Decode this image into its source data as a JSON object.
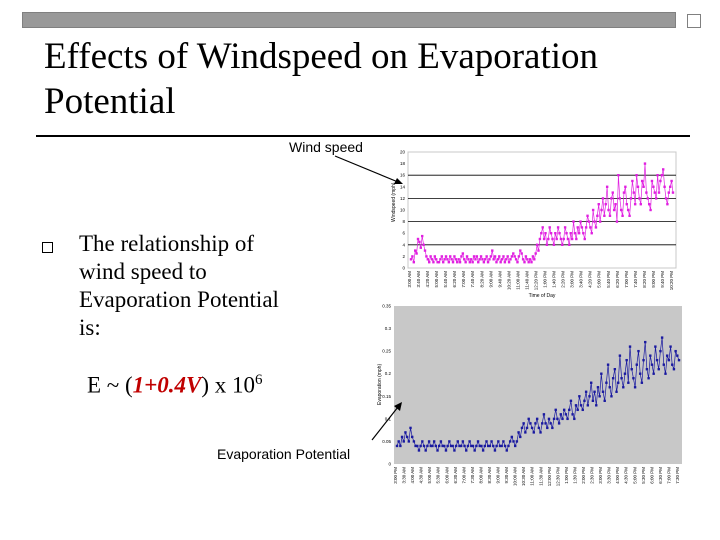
{
  "slide": {
    "title_line1": "Effects of Windspeed on Evaporation",
    "title_line2": "Potential",
    "body_lines": [
      "The relationship of",
      "wind speed to",
      "Evaporation Potential",
      "is:"
    ],
    "formula": {
      "prefix": "E ~ (",
      "highlight": "1+0.4V",
      "suffix": ") x 10",
      "exponent": "6"
    },
    "label_wind": "Wind speed",
    "label_evap": "Evaporation Potential"
  },
  "colors": {
    "wind_series": "#e020e0",
    "evap_series": "#1a1aa0",
    "plot_bg": "#c8c8c8",
    "accent": "#c00000"
  },
  "chart_data": [
    {
      "type": "scatter",
      "title": "",
      "xlabel": "Time of Day",
      "ylabel": "Windspeed (mph)",
      "ylim": [
        0,
        20
      ],
      "ytick_labels": [
        "0",
        "2",
        "4",
        "6",
        "8",
        "10",
        "12",
        "14",
        "16",
        "18",
        "20"
      ],
      "grid_values": [
        4,
        8,
        12,
        16
      ],
      "x_tick_labels": [
        "3:00 AM",
        "3:40 AM",
        "4:20 AM",
        "5:00 AM",
        "5:40 AM",
        "6:20 AM",
        "7:00 AM",
        "7:40 AM",
        "8:20 AM",
        "9:00 AM",
        "9:40 AM",
        "10:20 AM",
        "11:00 AM",
        "11:40 AM",
        "12:20 PM",
        "1:00 PM",
        "1:40 PM",
        "2:20 PM",
        "3:00 PM",
        "3:40 PM",
        "4:20 PM",
        "5:00 PM",
        "5:40 PM",
        "6:20 PM",
        "7:00 PM",
        "7:40 PM",
        "8:20 PM",
        "9:00 PM",
        "9:40 PM",
        "10:20 PM"
      ],
      "series": [
        {
          "name": "Windspeed",
          "values": [
            1.5,
            2,
            1,
            3,
            2.5,
            5,
            4.5,
            3.5,
            5.5,
            4,
            3,
            2,
            1.5,
            1,
            2,
            1.5,
            1,
            2,
            1.5,
            1,
            1,
            1.5,
            2,
            1,
            1.5,
            2,
            1.5,
            1,
            2,
            1.5,
            1,
            2,
            1.5,
            1,
            1.5,
            1,
            2,
            2.5,
            1.5,
            1,
            2,
            1.5,
            1,
            1.5,
            1,
            2,
            1.5,
            2,
            1,
            1.5,
            2,
            1.5,
            1,
            1.5,
            2,
            1,
            1.5,
            2,
            3,
            1.5,
            2,
            1,
            1.5,
            2,
            1,
            1.5,
            2,
            1,
            1.5,
            2,
            1,
            1.5,
            2,
            2.5,
            2,
            1.5,
            1,
            2,
            3,
            2.5,
            1.5,
            1,
            2,
            1.5,
            1,
            1.5,
            1,
            2,
            1.5,
            2.5,
            4,
            3,
            5,
            6,
            7,
            5,
            6,
            4,
            5,
            7,
            6,
            5,
            4,
            6,
            5,
            7,
            6,
            5,
            4,
            5,
            7,
            6,
            5,
            4,
            6,
            5,
            8,
            6,
            5,
            7,
            6,
            8,
            7,
            6,
            5,
            7,
            9,
            8,
            7,
            6,
            10,
            8,
            7,
            9,
            11,
            8,
            10,
            12,
            9,
            11,
            14,
            10,
            9,
            12,
            13,
            10,
            11,
            8,
            16,
            12,
            10,
            9,
            13,
            14,
            11,
            10,
            9,
            12,
            15,
            13,
            11,
            16,
            14,
            12,
            11,
            15,
            14,
            18,
            13,
            12,
            11,
            10,
            15,
            14,
            13,
            12,
            16,
            13,
            15,
            16,
            17,
            14,
            12,
            11,
            13,
            14,
            15,
            13
          ]
        }
      ]
    },
    {
      "type": "scatter",
      "title": "",
      "xlabel": "",
      "ylabel": "Evaporation (mph)",
      "ylim": [
        0,
        0.35
      ],
      "ytick_labels": [
        "0",
        "0.05",
        "0.1",
        "0.15",
        "0.2",
        "0.25",
        "0.3",
        "0.35"
      ],
      "x_tick_labels": [
        "3:00 PM",
        "3:30 AM",
        "4:00 AM",
        "4:30 AM",
        "5:00 AM",
        "5:30 AM",
        "6:00 AM",
        "6:30 AM",
        "7:00 AM",
        "7:30 AM",
        "8:00 AM",
        "8:30 AM",
        "9:00 AM",
        "9:30 AM",
        "10:00 AM",
        "10:30 AM",
        "11:00 AM",
        "11:30 AM",
        "12:00 PM",
        "12:30 PM",
        "1:00 PM",
        "1:30 PM",
        "2:00 PM",
        "2:30 PM",
        "3:00 PM",
        "3:30 PM",
        "4:00 PM",
        "4:30 PM",
        "5:00 PM",
        "5:30 PM",
        "6:00 PM",
        "6:30 PM",
        "7:00 PM",
        "7:30 PM"
      ],
      "series": [
        {
          "name": "Evaporation Potential",
          "values": [
            0.04,
            0.05,
            0.04,
            0.06,
            0.05,
            0.07,
            0.06,
            0.05,
            0.08,
            0.06,
            0.05,
            0.04,
            0.04,
            0.03,
            0.04,
            0.05,
            0.04,
            0.03,
            0.04,
            0.05,
            0.04,
            0.04,
            0.05,
            0.04,
            0.03,
            0.04,
            0.05,
            0.04,
            0.04,
            0.03,
            0.04,
            0.05,
            0.04,
            0.04,
            0.03,
            0.04,
            0.05,
            0.04,
            0.04,
            0.05,
            0.04,
            0.03,
            0.04,
            0.05,
            0.04,
            0.04,
            0.03,
            0.04,
            0.05,
            0.04,
            0.04,
            0.03,
            0.04,
            0.05,
            0.04,
            0.04,
            0.05,
            0.04,
            0.03,
            0.04,
            0.05,
            0.04,
            0.04,
            0.05,
            0.04,
            0.03,
            0.04,
            0.05,
            0.06,
            0.05,
            0.04,
            0.05,
            0.07,
            0.06,
            0.08,
            0.09,
            0.07,
            0.08,
            0.1,
            0.09,
            0.08,
            0.07,
            0.09,
            0.1,
            0.08,
            0.07,
            0.09,
            0.11,
            0.09,
            0.08,
            0.1,
            0.09,
            0.08,
            0.1,
            0.12,
            0.1,
            0.09,
            0.11,
            0.1,
            0.12,
            0.11,
            0.1,
            0.12,
            0.14,
            0.11,
            0.1,
            0.13,
            0.12,
            0.15,
            0.13,
            0.12,
            0.14,
            0.16,
            0.13,
            0.15,
            0.18,
            0.14,
            0.16,
            0.13,
            0.17,
            0.15,
            0.2,
            0.16,
            0.14,
            0.18,
            0.22,
            0.17,
            0.15,
            0.19,
            0.21,
            0.16,
            0.18,
            0.24,
            0.19,
            0.17,
            0.2,
            0.23,
            0.18,
            0.26,
            0.21,
            0.19,
            0.17,
            0.22,
            0.25,
            0.2,
            0.18,
            0.23,
            0.27,
            0.21,
            0.19,
            0.24,
            0.22,
            0.2,
            0.26,
            0.23,
            0.21,
            0.25,
            0.28,
            0.22,
            0.2,
            0.24,
            0.23,
            0.26,
            0.22,
            0.21,
            0.25,
            0.24,
            0.23
          ]
        }
      ]
    }
  ]
}
